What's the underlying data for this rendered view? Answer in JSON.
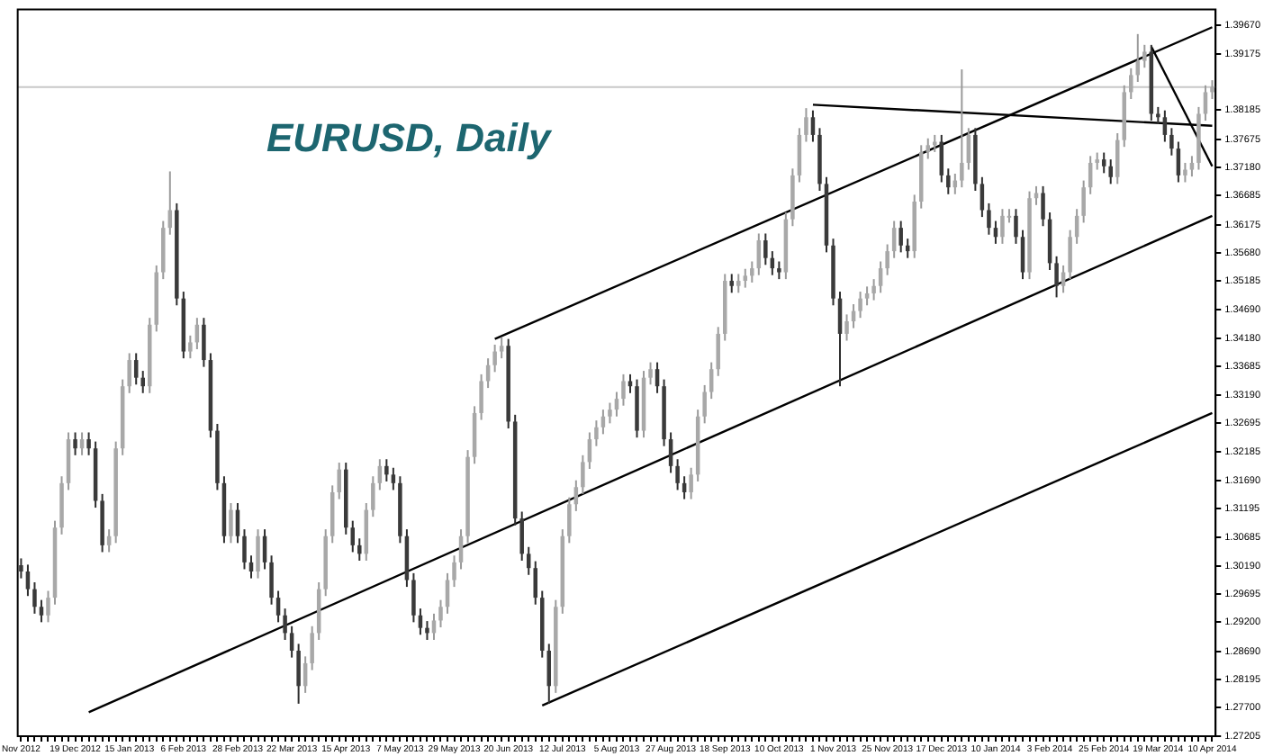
{
  "chart_data": {
    "type": "candlestick",
    "title": "EURUSD, Daily",
    "categories": [
      "Nov 2012",
      null,
      null,
      null,
      null,
      null,
      null,
      null,
      "19 Dec 2012",
      null,
      null,
      null,
      null,
      null,
      null,
      null,
      "15 Jan 2013",
      null,
      null,
      null,
      null,
      null,
      null,
      null,
      "6 Feb 2013",
      null,
      null,
      null,
      null,
      null,
      null,
      null,
      "28 Feb 2013",
      null,
      null,
      null,
      null,
      null,
      null,
      null,
      "22 Mar 2013",
      null,
      null,
      null,
      null,
      null,
      null,
      null,
      "15 Apr 2013",
      null,
      null,
      null,
      null,
      null,
      null,
      null,
      "7 May 2013",
      null,
      null,
      null,
      null,
      null,
      null,
      null,
      "29 May 2013",
      null,
      null,
      null,
      null,
      null,
      null,
      null,
      "20 Jun 2013",
      null,
      null,
      null,
      null,
      null,
      null,
      null,
      "12 Jul 2013",
      null,
      null,
      null,
      null,
      null,
      null,
      null,
      "5 Aug 2013",
      null,
      null,
      null,
      null,
      null,
      null,
      null,
      "27 Aug 2013",
      null,
      null,
      null,
      null,
      null,
      null,
      null,
      "18 Sep 2013",
      null,
      null,
      null,
      null,
      null,
      null,
      null,
      "10 Oct 2013",
      null,
      null,
      null,
      null,
      null,
      null,
      null,
      "1 Nov 2013",
      null,
      null,
      null,
      null,
      null,
      null,
      null,
      "25 Nov 2013",
      null,
      null,
      null,
      null,
      null,
      null,
      null,
      "17 Dec 2013",
      null,
      null,
      null,
      null,
      null,
      null,
      null,
      "10 Jan 2014",
      null,
      null,
      null,
      null,
      null,
      null,
      null,
      "3 Feb 2014",
      null,
      null,
      null,
      null,
      null,
      null,
      null,
      "25 Feb 2014",
      null,
      null,
      null,
      null,
      null,
      null,
      null,
      "19 Mar 2014",
      null,
      null,
      null,
      null,
      null,
      null,
      null,
      "10 Apr 2014"
    ],
    "ohlc": [
      [
        1.302,
        1.3032,
        1.2997,
        1.3009
      ],
      [
        1.3009,
        1.3021,
        1.2966,
        1.2978
      ],
      [
        1.2978,
        1.299,
        1.2935,
        1.2947
      ],
      [
        1.2947,
        1.2959,
        1.292,
        1.2932
      ],
      [
        1.2932,
        1.2975,
        1.292,
        1.2963
      ],
      [
        1.2963,
        1.3098,
        1.2951,
        1.3086
      ],
      [
        1.3086,
        1.3176,
        1.3074,
        1.3164
      ],
      [
        1.3164,
        1.3253,
        1.3152,
        1.3241
      ],
      [
        1.3241,
        1.3253,
        1.3213,
        1.3225
      ],
      [
        1.3225,
        1.3253,
        1.3213,
        1.3241
      ],
      [
        1.3241,
        1.3253,
        1.3213,
        1.3225
      ],
      [
        1.3225,
        1.3237,
        1.3121,
        1.3133
      ],
      [
        1.3133,
        1.3145,
        1.3043,
        1.3055
      ],
      [
        1.3055,
        1.3083,
        1.3043,
        1.3071
      ],
      [
        1.3071,
        1.3237,
        1.3059,
        1.3225
      ],
      [
        1.3225,
        1.3346,
        1.3213,
        1.3334
      ],
      [
        1.3334,
        1.3392,
        1.3322,
        1.338
      ],
      [
        1.338,
        1.3392,
        1.3337,
        1.3349
      ],
      [
        1.3349,
        1.3361,
        1.3322,
        1.3334
      ],
      [
        1.3334,
        1.3454,
        1.3322,
        1.3442
      ],
      [
        1.3442,
        1.3546,
        1.343,
        1.3534
      ],
      [
        1.3534,
        1.3624,
        1.3522,
        1.3612
      ],
      [
        1.3612,
        1.3711,
        1.36,
        1.3643
      ],
      [
        1.3643,
        1.3655,
        1.3476,
        1.3488
      ],
      [
        1.3488,
        1.35,
        1.3383,
        1.3395
      ],
      [
        1.3395,
        1.3423,
        1.3383,
        1.3411
      ],
      [
        1.3411,
        1.3454,
        1.3399,
        1.3442
      ],
      [
        1.3442,
        1.3454,
        1.3368,
        1.338
      ],
      [
        1.338,
        1.3392,
        1.3244,
        1.3256
      ],
      [
        1.3256,
        1.3268,
        1.3152,
        1.3164
      ],
      [
        1.3164,
        1.3176,
        1.3059,
        1.3071
      ],
      [
        1.3071,
        1.3129,
        1.3059,
        1.3117
      ],
      [
        1.3117,
        1.3129,
        1.3059,
        1.3071
      ],
      [
        1.3071,
        1.3083,
        1.3013,
        1.3025
      ],
      [
        1.3025,
        1.3037,
        1.2997,
        1.3009
      ],
      [
        1.3009,
        1.3083,
        1.2997,
        1.3071
      ],
      [
        1.3071,
        1.3083,
        1.3013,
        1.3025
      ],
      [
        1.3025,
        1.3037,
        1.2951,
        1.2963
      ],
      [
        1.2963,
        1.2975,
        1.292,
        1.2932
      ],
      [
        1.2932,
        1.2944,
        1.2889,
        1.2901
      ],
      [
        1.2901,
        1.2913,
        1.2858,
        1.287
      ],
      [
        1.287,
        1.2882,
        1.2777,
        1.2808
      ],
      [
        1.2808,
        1.286,
        1.2796,
        1.2848
      ],
      [
        1.2848,
        1.2913,
        1.2836,
        1.2901
      ],
      [
        1.2901,
        1.299,
        1.2889,
        1.2978
      ],
      [
        1.2978,
        1.3083,
        1.2966,
        1.3071
      ],
      [
        1.3071,
        1.316,
        1.3059,
        1.3148
      ],
      [
        1.3148,
        1.32,
        1.3136,
        1.3188
      ],
      [
        1.3188,
        1.32,
        1.3074,
        1.3086
      ],
      [
        1.3086,
        1.3098,
        1.3043,
        1.3055
      ],
      [
        1.3055,
        1.3067,
        1.3028,
        1.304
      ],
      [
        1.304,
        1.3129,
        1.3028,
        1.3117
      ],
      [
        1.3117,
        1.3176,
        1.3105,
        1.3164
      ],
      [
        1.3164,
        1.3206,
        1.3152,
        1.3194
      ],
      [
        1.3194,
        1.3206,
        1.3167,
        1.3179
      ],
      [
        1.3179,
        1.3191,
        1.3152,
        1.3164
      ],
      [
        1.3164,
        1.3176,
        1.3059,
        1.3071
      ],
      [
        1.3071,
        1.3083,
        1.2982,
        1.2994
      ],
      [
        1.2994,
        1.3006,
        1.292,
        1.2932
      ],
      [
        1.2932,
        1.2944,
        1.2898,
        1.291
      ],
      [
        1.291,
        1.2922,
        1.2889,
        1.2901
      ],
      [
        1.2901,
        1.2935,
        1.2889,
        1.2923
      ],
      [
        1.2923,
        1.2959,
        1.2911,
        1.2947
      ],
      [
        1.2947,
        1.3006,
        1.2935,
        1.2994
      ],
      [
        1.2994,
        1.3037,
        1.2982,
        1.3025
      ],
      [
        1.3025,
        1.3083,
        1.3013,
        1.3071
      ],
      [
        1.3071,
        1.3222,
        1.3059,
        1.321
      ],
      [
        1.321,
        1.3299,
        1.3198,
        1.3287
      ],
      [
        1.3287,
        1.3355,
        1.3275,
        1.3343
      ],
      [
        1.3343,
        1.3383,
        1.3331,
        1.3371
      ],
      [
        1.3371,
        1.3407,
        1.3359,
        1.3395
      ],
      [
        1.3395,
        1.342,
        1.3383,
        1.3405
      ],
      [
        1.3405,
        1.3417,
        1.326,
        1.3272
      ],
      [
        1.3272,
        1.3284,
        1.309,
        1.3102
      ],
      [
        1.3102,
        1.3114,
        1.3028,
        1.304
      ],
      [
        1.304,
        1.3052,
        1.3003,
        1.3015
      ],
      [
        1.3015,
        1.3027,
        1.2951,
        1.2963
      ],
      [
        1.2963,
        1.2975,
        1.2858,
        1.287
      ],
      [
        1.287,
        1.2882,
        1.2777,
        1.2808
      ],
      [
        1.2808,
        1.2959,
        1.2796,
        1.2947
      ],
      [
        1.2947,
        1.3083,
        1.2935,
        1.3071
      ],
      [
        1.3071,
        1.3139,
        1.3059,
        1.3127
      ],
      [
        1.3127,
        1.3169,
        1.3115,
        1.3157
      ],
      [
        1.3157,
        1.3213,
        1.3145,
        1.3201
      ],
      [
        1.3201,
        1.3253,
        1.3189,
        1.3241
      ],
      [
        1.3241,
        1.3274,
        1.3229,
        1.3262
      ],
      [
        1.3262,
        1.3293,
        1.325,
        1.3281
      ],
      [
        1.3281,
        1.3305,
        1.3269,
        1.3293
      ],
      [
        1.3293,
        1.3324,
        1.3281,
        1.3312
      ],
      [
        1.3312,
        1.3355,
        1.33,
        1.3343
      ],
      [
        1.3343,
        1.3355,
        1.3322,
        1.3334
      ],
      [
        1.3334,
        1.3346,
        1.3244,
        1.3256
      ],
      [
        1.3256,
        1.3361,
        1.3244,
        1.3349
      ],
      [
        1.3349,
        1.3376,
        1.3337,
        1.3364
      ],
      [
        1.3364,
        1.3376,
        1.3322,
        1.3334
      ],
      [
        1.3334,
        1.3346,
        1.3229,
        1.3241
      ],
      [
        1.3241,
        1.3253,
        1.3182,
        1.3194
      ],
      [
        1.3194,
        1.3206,
        1.3152,
        1.3164
      ],
      [
        1.3164,
        1.3176,
        1.3136,
        1.3148
      ],
      [
        1.3148,
        1.3191,
        1.3136,
        1.3179
      ],
      [
        1.3179,
        1.3293,
        1.3167,
        1.3281
      ],
      [
        1.3281,
        1.3336,
        1.3269,
        1.3324
      ],
      [
        1.3324,
        1.3376,
        1.3312,
        1.3364
      ],
      [
        1.3364,
        1.3438,
        1.3352,
        1.3426
      ],
      [
        1.3426,
        1.3531,
        1.3414,
        1.3519
      ],
      [
        1.3519,
        1.3531,
        1.3498,
        1.351
      ],
      [
        1.351,
        1.3531,
        1.3498,
        1.3519
      ],
      [
        1.3519,
        1.354,
        1.3507,
        1.3528
      ],
      [
        1.3528,
        1.3553,
        1.3516,
        1.3541
      ],
      [
        1.3541,
        1.3602,
        1.3529,
        1.359
      ],
      [
        1.359,
        1.3602,
        1.3547,
        1.3559
      ],
      [
        1.3559,
        1.3571,
        1.3529,
        1.3541
      ],
      [
        1.3541,
        1.3553,
        1.3522,
        1.3534
      ],
      [
        1.3534,
        1.3639,
        1.3522,
        1.3627
      ],
      [
        1.3627,
        1.3716,
        1.3615,
        1.3704
      ],
      [
        1.3704,
        1.3787,
        1.3692,
        1.3775
      ],
      [
        1.3775,
        1.3822,
        1.3763,
        1.3806
      ],
      [
        1.3806,
        1.3818,
        1.3763,
        1.3775
      ],
      [
        1.3775,
        1.3787,
        1.3677,
        1.3689
      ],
      [
        1.3689,
        1.3701,
        1.3569,
        1.3581
      ],
      [
        1.3581,
        1.3593,
        1.3476,
        1.3488
      ],
      [
        1.3488,
        1.35,
        1.3334,
        1.3426
      ],
      [
        1.3426,
        1.346,
        1.3414,
        1.3448
      ],
      [
        1.3448,
        1.3478,
        1.3436,
        1.3466
      ],
      [
        1.3466,
        1.35,
        1.3454,
        1.3488
      ],
      [
        1.3488,
        1.3509,
        1.3476,
        1.3497
      ],
      [
        1.3497,
        1.3522,
        1.3485,
        1.351
      ],
      [
        1.351,
        1.3553,
        1.3498,
        1.3541
      ],
      [
        1.3541,
        1.3583,
        1.3529,
        1.3571
      ],
      [
        1.3571,
        1.3624,
        1.3559,
        1.3612
      ],
      [
        1.3612,
        1.3624,
        1.3569,
        1.3581
      ],
      [
        1.3581,
        1.3593,
        1.3559,
        1.3571
      ],
      [
        1.3571,
        1.367,
        1.3559,
        1.3658
      ],
      [
        1.3658,
        1.3757,
        1.3646,
        1.3745
      ],
      [
        1.3745,
        1.3769,
        1.3733,
        1.3757
      ],
      [
        1.3757,
        1.3775,
        1.3745,
        1.3763
      ],
      [
        1.3763,
        1.3775,
        1.3692,
        1.3704
      ],
      [
        1.3704,
        1.3716,
        1.3671,
        1.3683
      ],
      [
        1.3683,
        1.3707,
        1.3671,
        1.3695
      ],
      [
        1.3695,
        1.389,
        1.3683,
        1.3726
      ],
      [
        1.3726,
        1.3787,
        1.3714,
        1.3775
      ],
      [
        1.3775,
        1.3787,
        1.3677,
        1.3689
      ],
      [
        1.3689,
        1.3701,
        1.3631,
        1.3643
      ],
      [
        1.3643,
        1.3655,
        1.36,
        1.3612
      ],
      [
        1.3612,
        1.3624,
        1.3584,
        1.3596
      ],
      [
        1.3596,
        1.3645,
        1.3584,
        1.3633
      ],
      [
        1.3633,
        1.3645,
        1.3621,
        1.3633
      ],
      [
        1.3633,
        1.3645,
        1.3584,
        1.3596
      ],
      [
        1.3596,
        1.3608,
        1.3522,
        1.3534
      ],
      [
        1.3534,
        1.3676,
        1.3522,
        1.3664
      ],
      [
        1.3664,
        1.3685,
        1.3652,
        1.3673
      ],
      [
        1.3673,
        1.3685,
        1.3615,
        1.3627
      ],
      [
        1.3627,
        1.3639,
        1.3538,
        1.355
      ],
      [
        1.355,
        1.3562,
        1.349,
        1.351
      ],
      [
        1.351,
        1.3546,
        1.3498,
        1.3534
      ],
      [
        1.3534,
        1.3608,
        1.3522,
        1.3596
      ],
      [
        1.3596,
        1.3645,
        1.3584,
        1.3633
      ],
      [
        1.3633,
        1.3695,
        1.3621,
        1.3683
      ],
      [
        1.3683,
        1.3738,
        1.3671,
        1.3726
      ],
      [
        1.3726,
        1.3744,
        1.3714,
        1.3732
      ],
      [
        1.3732,
        1.3744,
        1.3708,
        1.372
      ],
      [
        1.372,
        1.3732,
        1.3689,
        1.3701
      ],
      [
        1.3701,
        1.3778,
        1.3689,
        1.3766
      ],
      [
        1.3766,
        1.3862,
        1.3754,
        1.385
      ],
      [
        1.385,
        1.3892,
        1.3838,
        1.388
      ],
      [
        1.388,
        1.3952,
        1.3868,
        1.3905
      ],
      [
        1.3905,
        1.3933,
        1.3893,
        1.3921
      ],
      [
        1.3921,
        1.3933,
        1.38,
        1.3812
      ],
      [
        1.3812,
        1.3824,
        1.3794,
        1.3806
      ],
      [
        1.3806,
        1.3818,
        1.3763,
        1.3775
      ],
      [
        1.3775,
        1.3787,
        1.3739,
        1.3751
      ],
      [
        1.3751,
        1.3763,
        1.3692,
        1.3704
      ],
      [
        1.3704,
        1.3726,
        1.3692,
        1.3714
      ],
      [
        1.3714,
        1.3738,
        1.3702,
        1.3726
      ],
      [
        1.3726,
        1.3824,
        1.3714,
        1.3812
      ],
      [
        1.3812,
        1.3862,
        1.38,
        1.385
      ],
      [
        1.385,
        1.3871,
        1.3838,
        1.3859
      ]
    ],
    "series": [
      {
        "type": "line",
        "color": "#000000",
        "values": [
          null,
          null,
          null,
          null,
          null,
          null,
          null,
          null,
          null,
          null,
          1.2762,
          null,
          null,
          null,
          null,
          null,
          null,
          null,
          null,
          null,
          null,
          null,
          null,
          null,
          null,
          null,
          null,
          null,
          null,
          null,
          null,
          null,
          null,
          null,
          null,
          null,
          null,
          null,
          null,
          null,
          null,
          null,
          null,
          null,
          null,
          null,
          null,
          null,
          null,
          null,
          null,
          null,
          null,
          null,
          null,
          null,
          null,
          null,
          null,
          null,
          null,
          null,
          null,
          null,
          null,
          null,
          null,
          null,
          null,
          null,
          null,
          null,
          null,
          null,
          null,
          null,
          null,
          null,
          null,
          null,
          null,
          null,
          null,
          null,
          null,
          null,
          null,
          null,
          null,
          null,
          null,
          null,
          null,
          null,
          null,
          null,
          null,
          null,
          null,
          null,
          null,
          null,
          null,
          null,
          null,
          null,
          null,
          null,
          null,
          null,
          null,
          null,
          null,
          null,
          null,
          null,
          null,
          null,
          null,
          null,
          null,
          null,
          null,
          null,
          null,
          null,
          null,
          null,
          null,
          null,
          null,
          null,
          null,
          null,
          null,
          null,
          null,
          null,
          null,
          null,
          null,
          null,
          null,
          null,
          null,
          null,
          null,
          null,
          null,
          null,
          null,
          null,
          null,
          null,
          null,
          null,
          null,
          null,
          null,
          null,
          null,
          null,
          null,
          null,
          null,
          null,
          null,
          null,
          null,
          null,
          null,
          null,
          null,
          null,
          null,
          null,
          1.3633
        ]
      },
      {
        "type": "line",
        "color": "#000000",
        "values": [
          null,
          null,
          null,
          null,
          null,
          null,
          null,
          null,
          null,
          null,
          null,
          null,
          null,
          null,
          null,
          null,
          null,
          null,
          null,
          null,
          null,
          null,
          null,
          null,
          null,
          null,
          null,
          null,
          null,
          null,
          null,
          null,
          null,
          null,
          null,
          null,
          null,
          null,
          null,
          null,
          null,
          null,
          null,
          null,
          null,
          null,
          null,
          null,
          null,
          null,
          null,
          null,
          null,
          null,
          null,
          null,
          null,
          null,
          null,
          null,
          null,
          null,
          null,
          null,
          null,
          null,
          null,
          null,
          null,
          null,
          1.3417,
          null,
          null,
          null,
          null,
          null,
          null,
          null,
          null,
          null,
          null,
          null,
          null,
          null,
          null,
          null,
          null,
          null,
          null,
          null,
          null,
          null,
          null,
          null,
          null,
          null,
          null,
          null,
          null,
          null,
          null,
          null,
          null,
          null,
          null,
          null,
          null,
          null,
          null,
          null,
          null,
          null,
          null,
          null,
          null,
          null,
          null,
          null,
          null,
          null,
          null,
          null,
          null,
          null,
          null,
          null,
          null,
          null,
          null,
          null,
          null,
          null,
          null,
          null,
          null,
          null,
          null,
          null,
          null,
          null,
          null,
          null,
          null,
          null,
          null,
          null,
          null,
          null,
          null,
          null,
          null,
          null,
          null,
          null,
          null,
          null,
          null,
          null,
          null,
          null,
          null,
          null,
          null,
          null,
          null,
          null,
          null,
          null,
          null,
          null,
          null,
          null,
          null,
          null,
          null,
          null,
          1.3964
        ]
      },
      {
        "type": "line",
        "color": "#000000",
        "values": [
          null,
          null,
          null,
          null,
          null,
          null,
          null,
          null,
          null,
          null,
          null,
          null,
          null,
          null,
          null,
          null,
          null,
          null,
          null,
          null,
          null,
          null,
          null,
          null,
          null,
          null,
          null,
          null,
          null,
          null,
          null,
          null,
          null,
          null,
          null,
          null,
          null,
          null,
          null,
          null,
          null,
          null,
          null,
          null,
          null,
          null,
          null,
          null,
          null,
          null,
          null,
          null,
          null,
          null,
          null,
          null,
          null,
          null,
          null,
          null,
          null,
          null,
          null,
          null,
          null,
          null,
          null,
          null,
          null,
          null,
          null,
          null,
          null,
          null,
          null,
          null,
          null,
          1.2774,
          null,
          null,
          null,
          null,
          null,
          null,
          null,
          null,
          null,
          null,
          null,
          null,
          null,
          null,
          null,
          null,
          null,
          null,
          null,
          null,
          null,
          null,
          null,
          null,
          null,
          null,
          null,
          null,
          null,
          null,
          null,
          null,
          null,
          null,
          null,
          null,
          null,
          null,
          null,
          null,
          null,
          null,
          null,
          null,
          null,
          null,
          null,
          null,
          null,
          null,
          null,
          null,
          null,
          null,
          null,
          null,
          null,
          null,
          null,
          null,
          null,
          null,
          null,
          null,
          null,
          null,
          null,
          null,
          null,
          null,
          null,
          null,
          null,
          null,
          null,
          null,
          null,
          null,
          null,
          null,
          null,
          null,
          null,
          null,
          null,
          null,
          null,
          null,
          null,
          null,
          null,
          null,
          null,
          null,
          null,
          null,
          null,
          null,
          1.3287
        ]
      },
      {
        "type": "line",
        "color": "#000000",
        "values": [
          null,
          null,
          null,
          null,
          null,
          null,
          null,
          null,
          null,
          null,
          null,
          null,
          null,
          null,
          null,
          null,
          null,
          null,
          null,
          null,
          null,
          null,
          null,
          null,
          null,
          null,
          null,
          null,
          null,
          null,
          null,
          null,
          null,
          null,
          null,
          null,
          null,
          null,
          null,
          null,
          null,
          null,
          null,
          null,
          null,
          null,
          null,
          null,
          null,
          null,
          null,
          null,
          null,
          null,
          null,
          null,
          null,
          null,
          null,
          null,
          null,
          null,
          null,
          null,
          null,
          null,
          null,
          null,
          null,
          null,
          null,
          null,
          null,
          null,
          null,
          null,
          null,
          null,
          null,
          null,
          null,
          null,
          null,
          null,
          null,
          null,
          null,
          null,
          null,
          null,
          null,
          null,
          null,
          null,
          null,
          null,
          null,
          null,
          null,
          null,
          null,
          null,
          null,
          null,
          null,
          null,
          null,
          null,
          null,
          null,
          null,
          null,
          null,
          null,
          null,
          null,
          null,
          1.3828,
          null,
          null,
          null,
          null,
          null,
          null,
          null,
          null,
          null,
          null,
          null,
          null,
          null,
          null,
          null,
          null,
          null,
          null,
          null,
          null,
          null,
          null,
          null,
          null,
          null,
          null,
          null,
          null,
          null,
          null,
          null,
          null,
          null,
          null,
          null,
          null,
          null,
          null,
          null,
          null,
          null,
          null,
          null,
          null,
          null,
          null,
          null,
          null,
          null,
          null,
          null,
          null,
          null,
          null,
          null,
          null,
          null,
          null,
          1.3791
        ]
      },
      {
        "type": "line",
        "color": "#000000",
        "values": [
          null,
          null,
          null,
          null,
          null,
          null,
          null,
          null,
          null,
          null,
          null,
          null,
          null,
          null,
          null,
          null,
          null,
          null,
          null,
          null,
          null,
          null,
          null,
          null,
          null,
          null,
          null,
          null,
          null,
          null,
          null,
          null,
          null,
          null,
          null,
          null,
          null,
          null,
          null,
          null,
          null,
          null,
          null,
          null,
          null,
          null,
          null,
          null,
          null,
          null,
          null,
          null,
          null,
          null,
          null,
          null,
          null,
          null,
          null,
          null,
          null,
          null,
          null,
          null,
          null,
          null,
          null,
          null,
          null,
          null,
          null,
          null,
          null,
          null,
          null,
          null,
          null,
          null,
          null,
          null,
          null,
          null,
          null,
          null,
          null,
          null,
          null,
          null,
          null,
          null,
          null,
          null,
          null,
          null,
          null,
          null,
          null,
          null,
          null,
          null,
          null,
          null,
          null,
          null,
          null,
          null,
          null,
          null,
          null,
          null,
          null,
          null,
          null,
          null,
          null,
          null,
          null,
          null,
          null,
          null,
          null,
          null,
          null,
          null,
          null,
          null,
          null,
          null,
          null,
          null,
          null,
          null,
          null,
          null,
          null,
          null,
          null,
          null,
          null,
          null,
          null,
          null,
          null,
          null,
          null,
          null,
          null,
          null,
          null,
          null,
          null,
          null,
          null,
          null,
          null,
          null,
          null,
          null,
          null,
          null,
          null,
          null,
          null,
          null,
          null,
          null,
          null,
          1.393,
          null,
          null,
          null,
          null,
          null,
          null,
          null,
          null,
          1.372
        ]
      }
    ],
    "ylim": [
      1.272,
      1.3995
    ],
    "yticks": [
      {
        "value": 1.3967,
        "label": "1.39670"
      },
      {
        "value": 1.39175,
        "label": "1.39175"
      },
      {
        "value": 1.38185,
        "label": "1.38185"
      },
      {
        "value": 1.37675,
        "label": "1.37675"
      },
      {
        "value": 1.3718,
        "label": "1.37180"
      },
      {
        "value": 1.36685,
        "label": "1.36685"
      },
      {
        "value": 1.36175,
        "label": "1.36175"
      },
      {
        "value": 1.3568,
        "label": "1.35680"
      },
      {
        "value": 1.35185,
        "label": "1.35185"
      },
      {
        "value": 1.3469,
        "label": "1.34690"
      },
      {
        "value": 1.3418,
        "label": "1.34180"
      },
      {
        "value": 1.33685,
        "label": "1.33685"
      },
      {
        "value": 1.3319,
        "label": "1.33190"
      },
      {
        "value": 1.32695,
        "label": "1.32695"
      },
      {
        "value": 1.32185,
        "label": "1.32185"
      },
      {
        "value": 1.3169,
        "label": "1.31690"
      },
      {
        "value": 1.31195,
        "label": "1.31195"
      },
      {
        "value": 1.30685,
        "label": "1.30685"
      },
      {
        "value": 1.3019,
        "label": "1.30190"
      },
      {
        "value": 1.29695,
        "label": "1.29695"
      },
      {
        "value": 1.292,
        "label": "1.29200"
      },
      {
        "value": 1.2869,
        "label": "1.28690"
      },
      {
        "value": 1.28195,
        "label": "1.28195"
      },
      {
        "value": 1.277,
        "label": "1.27700"
      },
      {
        "value": 1.27205,
        "label": "1.27205"
      }
    ],
    "ref_lines": [
      {
        "axis": "y",
        "value": 1.3859,
        "color": "#c8c8c8"
      }
    ]
  }
}
